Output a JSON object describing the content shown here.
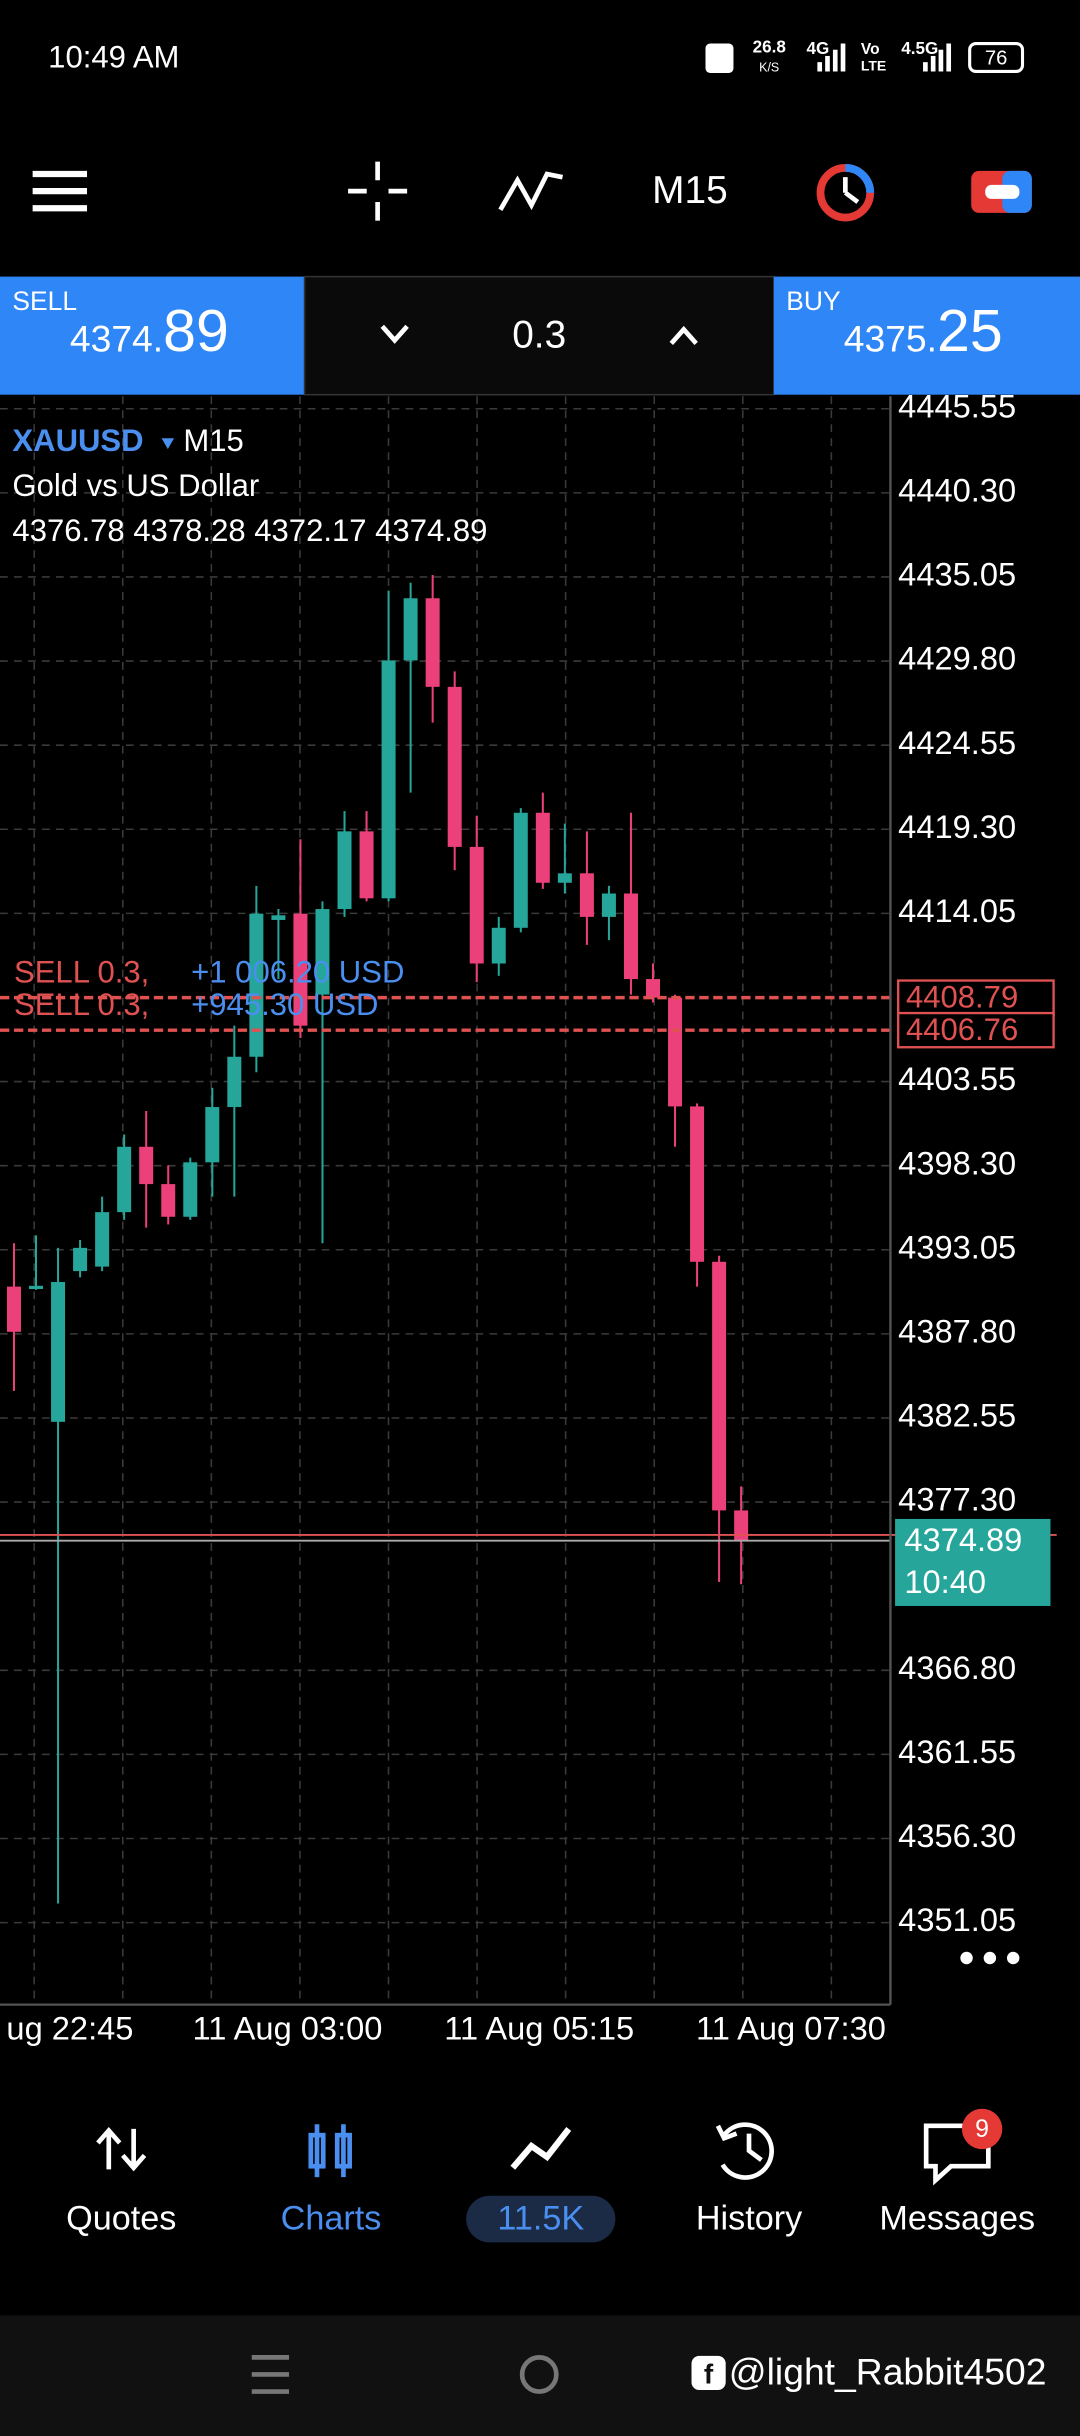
{
  "status_bar": {
    "time": "10:49 AM",
    "net_speed": "26.8",
    "net_unit": "K/S",
    "network1": "4G",
    "volte_top": "Vo",
    "volte_bottom": "LTE",
    "network2": "4.5G",
    "battery": "76"
  },
  "toolbar": {
    "timeframe": "M15"
  },
  "trade_panel": {
    "sell_label": "SELL",
    "sell_price_main": "4374.",
    "sell_price_pips": "89",
    "volume": "0.3",
    "buy_label": "BUY",
    "buy_price_main": "4375.",
    "buy_price_pips": "25"
  },
  "chart_data": {
    "type": "candlestick",
    "symbol": "XAUUSD",
    "timeframe": "M15",
    "description": "Gold vs US Dollar",
    "ohlc_label": "4376.78 4378.28 4372.17 4374.89",
    "up_color": "#26a69a",
    "down_color": "#ec407a",
    "candles": {
      "open": [
        4390.75,
        4390.6,
        4382.31,
        4391.72,
        4392.0,
        4395.4,
        4399.48,
        4397.15,
        4395.11,
        4398.51,
        4401.96,
        4405.1,
        4413.64,
        4414.03,
        4408.98,
        4414.32,
        4419.17,
        4414.99,
        4429.84,
        4433.72,
        4428.19,
        4418.2,
        4410.92,
        4413.15,
        4420.33,
        4415.96,
        4416.55,
        4413.83,
        4415.29,
        4409.95,
        4408.79,
        4402.0,
        4392.3,
        4376.78
      ],
      "high": [
        4393.46,
        4393.95,
        4393.17,
        4393.66,
        4396.37,
        4400.25,
        4401.71,
        4398.31,
        4398.8,
        4403.16,
        4407.04,
        4415.77,
        4414.32,
        4418.68,
        4414.8,
        4420.43,
        4420.43,
        4434.2,
        4434.69,
        4435.17,
        4429.16,
        4420.14,
        4413.83,
        4420.62,
        4421.59,
        4419.65,
        4419.17,
        4415.77,
        4420.33,
        4410.92,
        4408.98,
        4402.19,
        4392.68,
        4378.28
      ],
      "low": [
        4384.24,
        4390.55,
        4352.24,
        4391.33,
        4391.72,
        4394.92,
        4394.43,
        4394.63,
        4394.92,
        4396.37,
        4396.37,
        4404.13,
        4409.95,
        4406.27,
        4393.46,
        4413.83,
        4414.8,
        4414.8,
        4421.59,
        4425.96,
        4416.74,
        4409.76,
        4410.15,
        4412.86,
        4415.58,
        4415.29,
        4412.08,
        4412.38,
        4408.98,
        4408.49,
        4399.48,
        4390.75,
        4372.31,
        4372.17
      ],
      "close": [
        4387.93,
        4390.8,
        4391.04,
        4393.17,
        4395.4,
        4399.48,
        4397.15,
        4395.11,
        4398.51,
        4401.96,
        4405.1,
        4414.03,
        4413.93,
        4407.04,
        4414.32,
        4419.17,
        4414.99,
        4429.84,
        4433.72,
        4428.19,
        4418.2,
        4410.92,
        4413.15,
        4420.33,
        4415.96,
        4416.55,
        4413.83,
        4415.29,
        4409.95,
        4408.79,
        4402.0,
        4392.3,
        4376.78,
        4374.89
      ]
    },
    "ylim": [
      4345.93,
      4446.33
    ],
    "yticks": [
      4445.55,
      {
        "value": 4440.3,
        "label": "4440.30"
      },
      4435.05,
      {
        "value": 4429.8,
        "label": "4429.80"
      },
      4424.55,
      {
        "value": 4419.3,
        "label": "4419.30"
      },
      4414.05,
      4403.55,
      {
        "value": 4398.3,
        "label": "4398.30"
      },
      4393.05,
      {
        "value": 4387.8,
        "label": "4387.80"
      },
      4382.55,
      {
        "value": 4377.3,
        "label": "4377.30"
      },
      {
        "value": 4366.8,
        "label": "4366.80"
      },
      4361.55,
      {
        "value": 4356.3,
        "label": "4356.30"
      },
      4351.05
    ],
    "xtick_labels": [
      "ug 22:45",
      "11 Aug 03:00",
      "11 Aug 05:15",
      "11 Aug 07:30"
    ],
    "orders": [
      {
        "label": "SELL 0.3,",
        "profit": "+1 006.20 USD",
        "price": 4408.79
      },
      {
        "label": "SELL 0.3,",
        "profit": "+945.30 USD",
        "price": 4406.76
      }
    ],
    "bid": 4374.89,
    "bid_time": "10:40",
    "ask": 4375.25,
    "grid": true
  },
  "nav": {
    "items": [
      "Quotes",
      "Charts",
      "11.5K",
      "History",
      "Messages"
    ],
    "badge": "9"
  },
  "watermark": "@light_Rabbit4502"
}
